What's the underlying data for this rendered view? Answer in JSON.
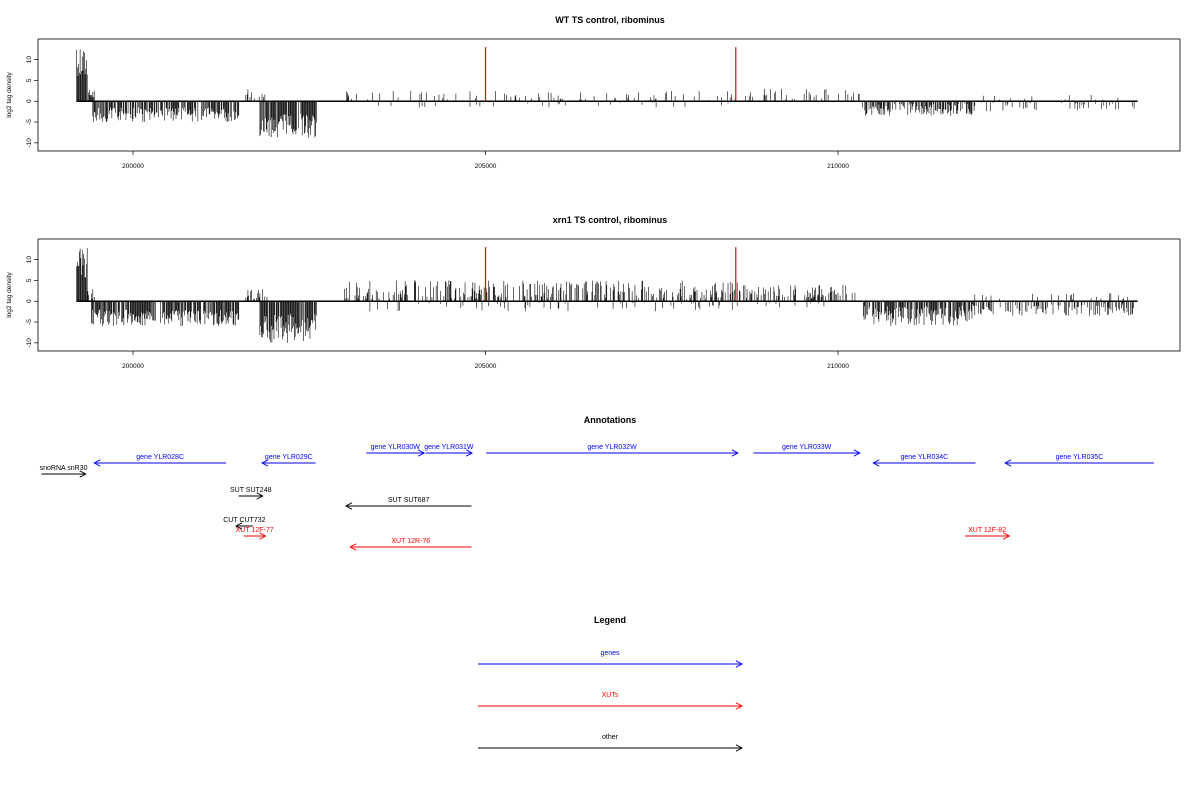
{
  "colors": {
    "gene": "#0000ff",
    "xut": "#ff0000",
    "other": "#000000",
    "marker": "#ff0000",
    "bars": "#000000"
  },
  "chart_data": [
    {
      "type": "bar",
      "title": "WT TS control, ribominus",
      "ylabel": "log2 tag density",
      "xlim": [
        198500,
        214800
      ],
      "ylim": [
        -11,
        14
      ],
      "yticks": [
        -10,
        -5,
        0,
        5,
        10
      ],
      "ytick_labels": [
        "-10",
        "-5",
        "0",
        "5",
        "10"
      ],
      "xticks": [
        200000,
        205000,
        210000
      ],
      "xtick_labels": [
        "200000",
        "205000",
        "210000"
      ],
      "markers_x": [
        205000,
        208550
      ],
      "marker_height": 13,
      "regions": [
        {
          "start": 199200,
          "end": 199350,
          "min": 5,
          "max": 13,
          "density": 1.0,
          "sign": 1
        },
        {
          "start": 199350,
          "end": 199450,
          "min": 0.5,
          "max": 3,
          "density": 0.8,
          "sign": 1
        },
        {
          "start": 199400,
          "end": 201500,
          "min": 1.5,
          "max": 5,
          "density": 0.7,
          "sign": -1
        },
        {
          "start": 201600,
          "end": 201900,
          "min": 0.5,
          "max": 3,
          "density": 0.3,
          "sign": 1
        },
        {
          "start": 201800,
          "end": 202600,
          "min": 3,
          "max": 9,
          "density": 0.9,
          "sign": -1
        },
        {
          "start": 203000,
          "end": 208600,
          "min": 0.3,
          "max": 2.5,
          "density": 0.12,
          "sign": 1
        },
        {
          "start": 203000,
          "end": 208600,
          "min": 0.3,
          "max": 1.5,
          "density": 0.04,
          "sign": -1
        },
        {
          "start": 208600,
          "end": 210300,
          "min": 0.3,
          "max": 3,
          "density": 0.2,
          "sign": 1
        },
        {
          "start": 210350,
          "end": 211900,
          "min": 0.5,
          "max": 3.5,
          "density": 0.6,
          "sign": -1
        },
        {
          "start": 211900,
          "end": 214200,
          "min": 0.3,
          "max": 2.5,
          "density": 0.2,
          "sign": -1
        },
        {
          "start": 211900,
          "end": 214200,
          "min": 0.3,
          "max": 1.5,
          "density": 0.05,
          "sign": 1
        }
      ]
    },
    {
      "type": "bar",
      "title": "xrn1 TS control, ribominus",
      "ylabel": "log2 tag density",
      "xlim": [
        198500,
        214800
      ],
      "ylim": [
        -11,
        14
      ],
      "yticks": [
        -10,
        -5,
        0,
        5,
        10
      ],
      "ytick_labels": [
        "-10",
        "-5",
        "0",
        "5",
        "10"
      ],
      "xticks": [
        200000,
        205000,
        210000
      ],
      "xtick_labels": [
        "200000",
        "205000",
        "210000"
      ],
      "markers_x": [
        205000,
        208550
      ],
      "marker_height": 13,
      "regions": [
        {
          "start": 199200,
          "end": 199350,
          "min": 5,
          "max": 13,
          "density": 1.0,
          "sign": 1
        },
        {
          "start": 199350,
          "end": 199450,
          "min": 0.5,
          "max": 3,
          "density": 0.8,
          "sign": 1
        },
        {
          "start": 199400,
          "end": 201500,
          "min": 2,
          "max": 6,
          "density": 0.8,
          "sign": -1
        },
        {
          "start": 201600,
          "end": 201900,
          "min": 0.5,
          "max": 3,
          "density": 0.3,
          "sign": 1
        },
        {
          "start": 201800,
          "end": 202600,
          "min": 3,
          "max": 10,
          "density": 0.9,
          "sign": -1
        },
        {
          "start": 203000,
          "end": 208600,
          "min": 0.5,
          "max": 5,
          "density": 0.45,
          "sign": 1
        },
        {
          "start": 203000,
          "end": 208600,
          "min": 0.3,
          "max": 2.5,
          "density": 0.1,
          "sign": -1
        },
        {
          "start": 208600,
          "end": 210300,
          "min": 0.5,
          "max": 4,
          "density": 0.4,
          "sign": 1
        },
        {
          "start": 208600,
          "end": 210300,
          "min": 0.3,
          "max": 1.5,
          "density": 0.08,
          "sign": -1
        },
        {
          "start": 210350,
          "end": 211900,
          "min": 1,
          "max": 6,
          "density": 0.75,
          "sign": -1
        },
        {
          "start": 211900,
          "end": 214200,
          "min": 0.5,
          "max": 3.5,
          "density": 0.4,
          "sign": -1
        },
        {
          "start": 211900,
          "end": 214200,
          "min": 0.3,
          "max": 2,
          "density": 0.1,
          "sign": 1
        }
      ]
    }
  ],
  "annotations": {
    "title": "Annotations",
    "features": [
      {
        "label": "snoRNA snR30",
        "type": "other",
        "start": 198700,
        "end": 199330,
        "strand": "+",
        "row": 2
      },
      {
        "label": "gene YLR028C",
        "type": "gene",
        "start": 199450,
        "end": 201320,
        "strand": "-",
        "row": 1
      },
      {
        "label": "gene YLR029C",
        "type": "gene",
        "start": 201830,
        "end": 202590,
        "strand": "-",
        "row": 1
      },
      {
        "label": "gene YLR030W",
        "type": "gene",
        "start": 203310,
        "end": 204130,
        "strand": "+",
        "row": 0
      },
      {
        "label": "gene YLR031W",
        "type": "gene",
        "start": 204150,
        "end": 204810,
        "strand": "+",
        "row": 0
      },
      {
        "label": "gene YLR032W",
        "type": "gene",
        "start": 205010,
        "end": 208580,
        "strand": "+",
        "row": 0
      },
      {
        "label": "gene YLR033W",
        "type": "gene",
        "start": 208800,
        "end": 210310,
        "strand": "+",
        "row": 0
      },
      {
        "label": "gene YLR034C",
        "type": "gene",
        "start": 210500,
        "end": 211950,
        "strand": "-",
        "row": 1
      },
      {
        "label": "gene YLR035C",
        "type": "gene",
        "start": 212370,
        "end": 214480,
        "strand": "-",
        "row": 1
      },
      {
        "label": "SUT SUT248",
        "type": "other",
        "start": 201500,
        "end": 201840,
        "strand": "+",
        "row": 3
      },
      {
        "label": "SUT SUT687",
        "type": "other",
        "start": 203020,
        "end": 204800,
        "strand": "-",
        "row": 4
      },
      {
        "label": "CUT CUT732",
        "type": "other",
        "start": 201460,
        "end": 201700,
        "strand": "-",
        "row": 5
      },
      {
        "label": "XUT 12F-77",
        "type": "xut",
        "start": 201570,
        "end": 201880,
        "strand": "+",
        "row": 6
      },
      {
        "label": "XUT 12R-76",
        "type": "xut",
        "start": 203080,
        "end": 204800,
        "strand": "-",
        "row": 7
      },
      {
        "label": "XUT 12F-82",
        "type": "xut",
        "start": 211800,
        "end": 212430,
        "strand": "+",
        "row": 6
      }
    ]
  },
  "legend": {
    "title": "Legend",
    "items": [
      {
        "label": "genes",
        "type": "gene"
      },
      {
        "label": "XUTs",
        "type": "xut"
      },
      {
        "label": "other",
        "type": "other"
      }
    ]
  }
}
